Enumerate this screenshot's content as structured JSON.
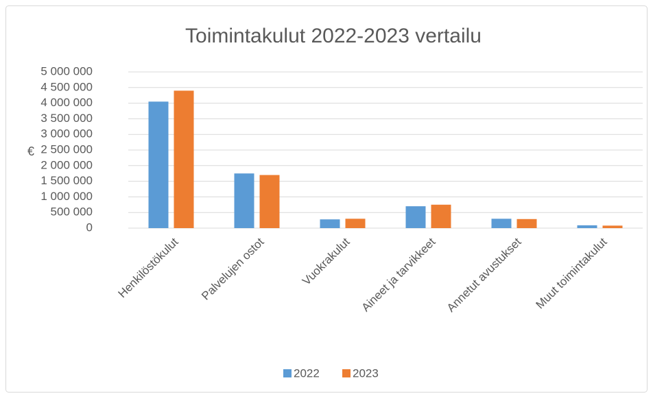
{
  "chart_data": {
    "type": "bar",
    "title": "Toimintakulut 2022-2023 vertailu",
    "y_label": "€",
    "categories": [
      "Henkilöstökulut",
      "Palvelujen ostot",
      "Vuokrakulut",
      "Aineet ja tarvikkeet",
      "Annetut avustukset",
      "Muut toimintakulut"
    ],
    "series": [
      {
        "name": "2022",
        "color": "#5b9bd5",
        "values": [
          4050000,
          1750000,
          280000,
          700000,
          300000,
          90000
        ]
      },
      {
        "name": "2023",
        "color": "#ed7d31",
        "values": [
          4400000,
          1700000,
          300000,
          750000,
          290000,
          80000
        ]
      }
    ],
    "ylim": [
      0,
      5000000
    ],
    "yticks": [
      0,
      {
        "value": 500000,
        "label": "500 000"
      },
      {
        "value": 1000000,
        "label": "1 000 000"
      },
      {
        "value": 1500000,
        "label": "1 500 000"
      },
      {
        "value": 2000000,
        "label": "2 000 000"
      },
      {
        "value": 2500000,
        "label": "2 500 000"
      },
      {
        "value": 3000000,
        "label": "3 000 000"
      },
      {
        "value": 3500000,
        "label": "3 500 000"
      },
      {
        "value": 4000000,
        "label": "4 000 000"
      },
      {
        "value": 4500000,
        "label": "4 500 000"
      },
      {
        "value": 5000000,
        "label": "5 000 000"
      }
    ],
    "grid": true,
    "legend": "bottom"
  }
}
